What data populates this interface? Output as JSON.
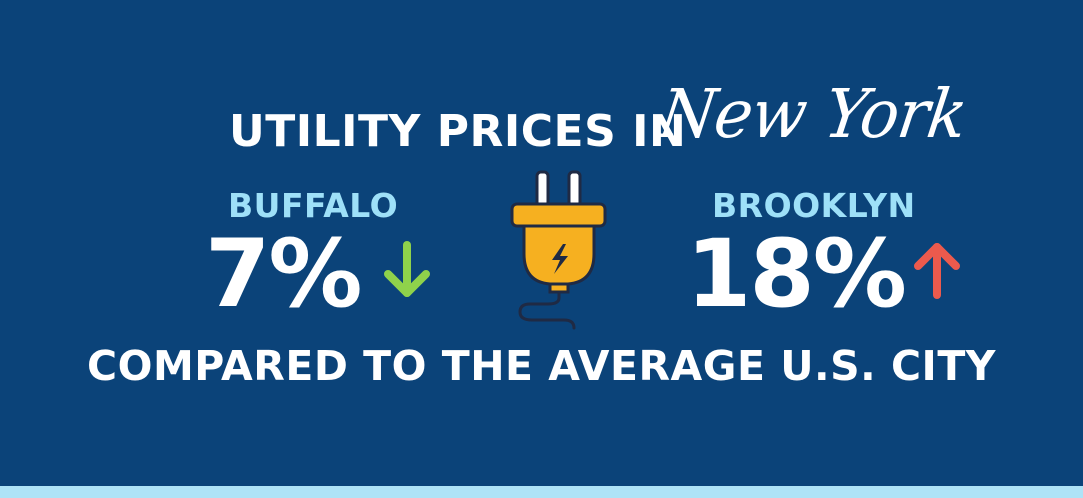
{
  "header": {
    "title_block": "UTILITY PRICES IN",
    "title_script": "New York"
  },
  "cities": [
    {
      "name": "BUFFALO",
      "change": "7%",
      "direction": "down",
      "arrow_color": "#8fd24b",
      "arrow_icon": "arrow-down-icon"
    },
    {
      "name": "BROOKLYN",
      "change": "18%",
      "direction": "up",
      "arrow_color": "#ec5a4d",
      "arrow_icon": "arrow-up-icon"
    }
  ],
  "center_icon": "electric-plug-icon",
  "footer": {
    "tagline": "COMPARED TO THE AVERAGE U.S. CITY"
  },
  "colors": {
    "background": "#0b4379",
    "label": "#9ee0f8",
    "plug": "#f6b020",
    "strip": "#aee3f7"
  }
}
